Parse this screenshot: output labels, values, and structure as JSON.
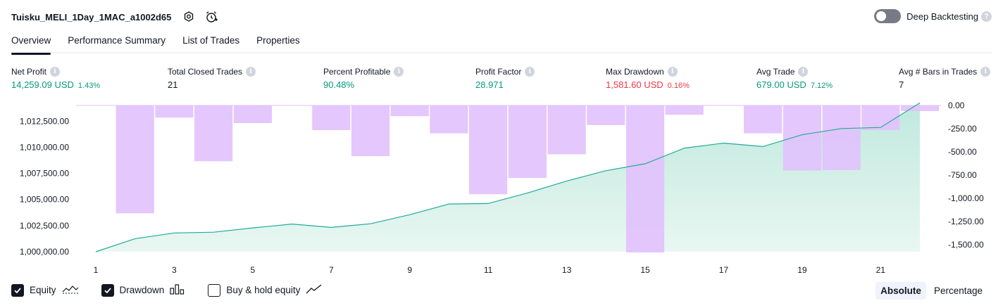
{
  "header": {
    "title": "Tuisku_MELI_1Day_1MAC_a1002d65",
    "settings_icon": "gear-icon",
    "alert_icon": "alarm-clock-icon",
    "deep_backtesting_label": "Deep Backtesting",
    "deep_backtesting_enabled": false
  },
  "tabs": [
    {
      "label": "Overview",
      "active": true
    },
    {
      "label": "Performance Summary",
      "active": false
    },
    {
      "label": "List of Trades",
      "active": false
    },
    {
      "label": "Properties",
      "active": false
    }
  ],
  "stats": {
    "net_profit": {
      "label": "Net Profit",
      "value": "14,259.09 USD",
      "sub": "1.43%"
    },
    "total_closed_trades": {
      "label": "Total Closed Trades",
      "value": "21"
    },
    "percent_profitable": {
      "label": "Percent Profitable",
      "value": "90.48%"
    },
    "profit_factor": {
      "label": "Profit Factor",
      "value": "28.971"
    },
    "max_drawdown": {
      "label": "Max Drawdown",
      "value": "1,581.60 USD",
      "sub": "0.16%"
    },
    "avg_trade": {
      "label": "Avg Trade",
      "value": "679.00 USD",
      "sub": "7.12%"
    },
    "avg_bars": {
      "label": "Avg # Bars in Trades",
      "value": "7"
    }
  },
  "colors": {
    "profit": "#089981",
    "loss": "#f23645",
    "equity_line": "#22ab94",
    "equity_fill": "#c9ede4",
    "drawdown_bar": "#e1c1fd",
    "overlap": "#c4b5ec"
  },
  "chart_data": {
    "type": "line",
    "x": [
      1,
      2,
      3,
      4,
      5,
      6,
      7,
      8,
      9,
      10,
      11,
      12,
      13,
      14,
      15,
      16,
      17,
      18,
      19,
      20,
      21,
      22
    ],
    "x_tick_labels": [
      "1",
      "3",
      "5",
      "7",
      "9",
      "11",
      "13",
      "15",
      "17",
      "19",
      "21"
    ],
    "left_axis": {
      "tick_labels": [
        "1,000,000.00",
        "1,002,500.00",
        "1,005,000.00",
        "1,007,500.00",
        "1,010,000.00",
        "1,012,500.00"
      ],
      "ylim": [
        1000000,
        1014000
      ]
    },
    "right_axis": {
      "tick_labels": [
        "0.00",
        "-250.00",
        "-500.00",
        "-750.00",
        "-1,000.00",
        "-1,250.00",
        "-1,500.00"
      ],
      "ylim": [
        -1581.6,
        0
      ]
    },
    "series": [
      {
        "name": "Equity",
        "type": "area",
        "axis": "left",
        "values": [
          1000000,
          1001250,
          1001800,
          1001870,
          1002280,
          1002650,
          1002330,
          1002680,
          1003550,
          1004570,
          1004620,
          1005630,
          1006770,
          1007760,
          1008420,
          1009920,
          1010400,
          1010070,
          1011200,
          1011790,
          1011900,
          1014259.09
        ]
      },
      {
        "name": "Drawdown",
        "type": "bar",
        "axis": "right",
        "values": [
          0,
          -1160,
          -130,
          -600,
          -190,
          0,
          -265,
          -545,
          -115,
          -300,
          -955,
          -780,
          -525,
          -210,
          -1581.6,
          -100,
          0,
          -300,
          -700,
          -695,
          -265,
          -60
        ]
      }
    ]
  },
  "legend": {
    "items": [
      {
        "label": "Equity",
        "checked": true,
        "icon": "equity-line-icon"
      },
      {
        "label": "Drawdown",
        "checked": true,
        "icon": "bars-icon"
      },
      {
        "label": "Buy & hold equity",
        "checked": false,
        "icon": "trend-line-icon"
      }
    ]
  },
  "modes": [
    {
      "label": "Absolute",
      "active": true
    },
    {
      "label": "Percentage",
      "active": false
    }
  ]
}
